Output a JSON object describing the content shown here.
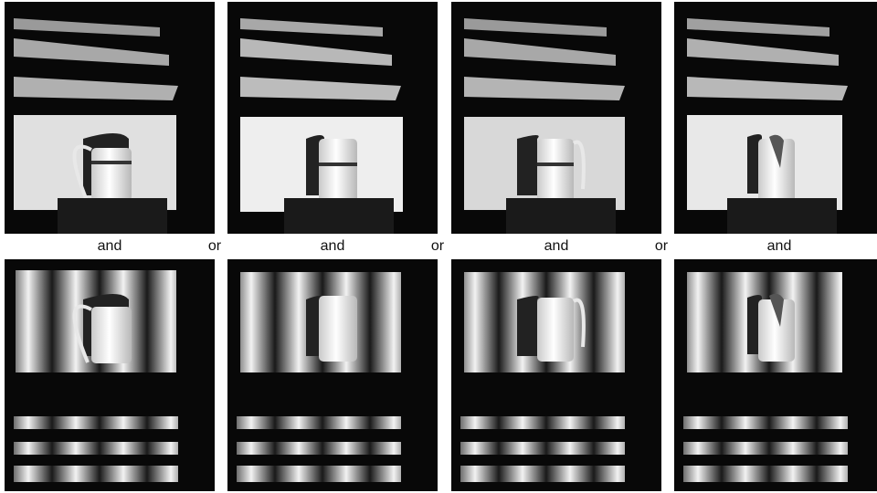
{
  "captions": {
    "and": [
      "and",
      "and",
      "and",
      "and"
    ],
    "or": [
      "or",
      "or",
      "or"
    ]
  },
  "rows": [
    {
      "pattern": "horizontal-bands",
      "panels": [
        "pitcher-left-shadow",
        "pitcher-right-shadow",
        "pitcher-left-shadow-handle",
        "pitcher-narrow-shadow"
      ]
    },
    {
      "pattern": "vertical-stripes",
      "panels": [
        "pitcher-left-shadow",
        "pitcher-right-shadow",
        "pitcher-left-shadow-handle",
        "pitcher-narrow-shadow"
      ]
    }
  ],
  "colors": {
    "background": "#ffffff",
    "scene": "#080808",
    "screen": "#e4e4e4",
    "caption_text": "#111111"
  }
}
